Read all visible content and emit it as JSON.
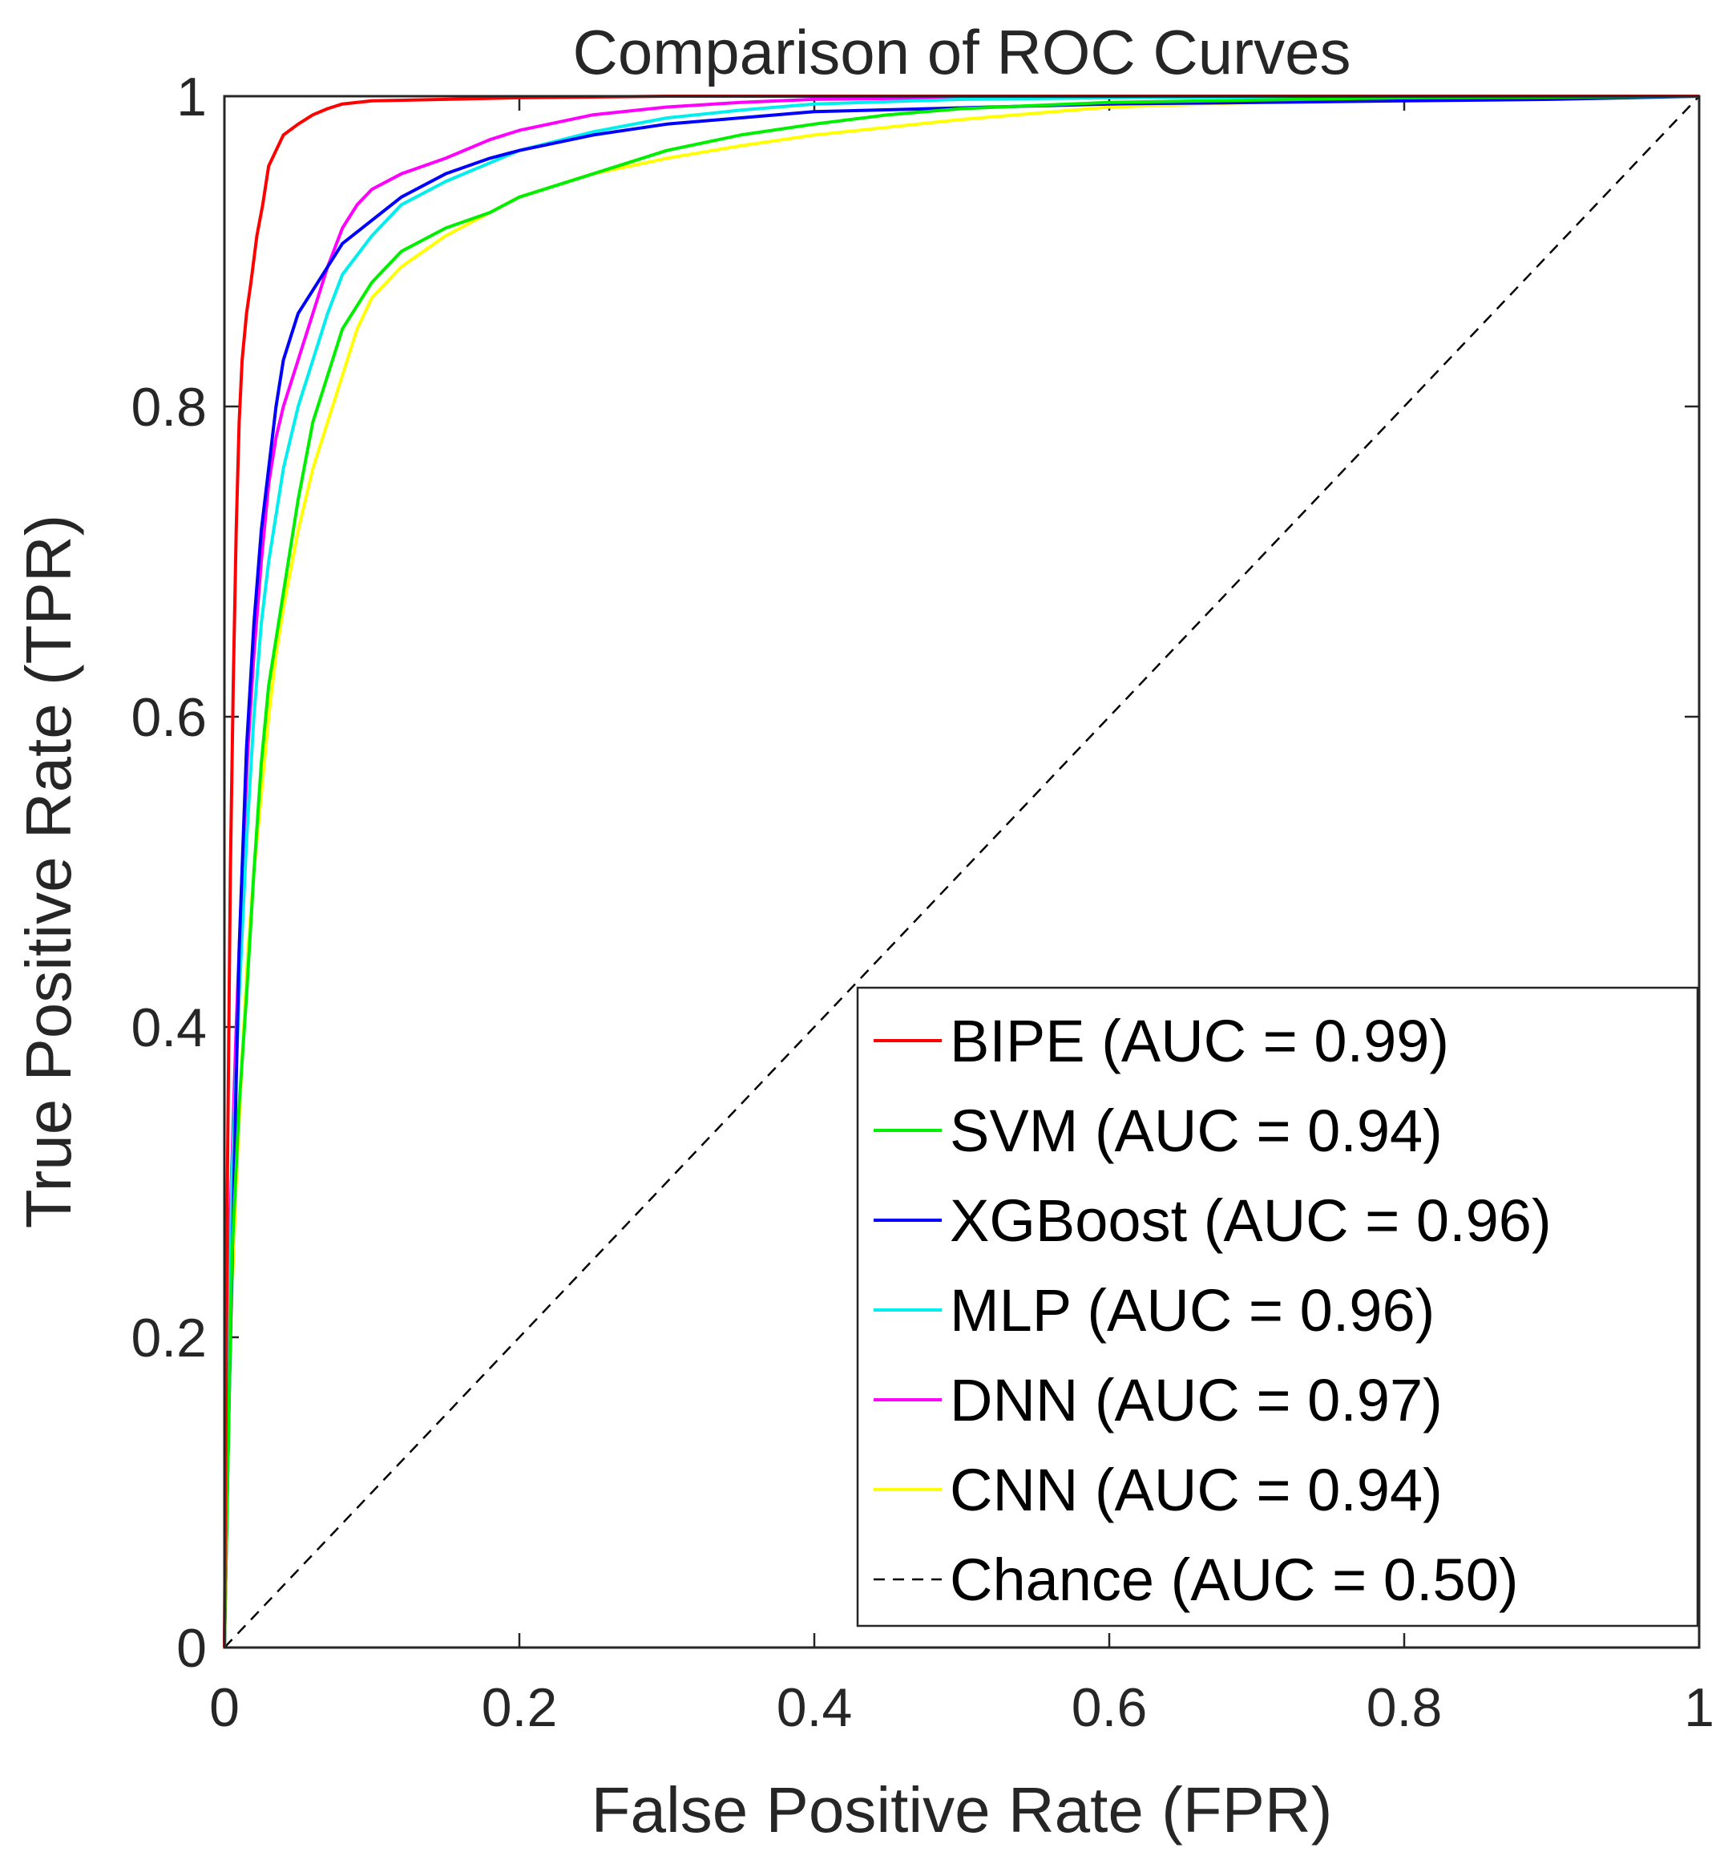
{
  "chart_data": {
    "type": "line",
    "title": "Comparison of ROC Curves",
    "xlabel": "False Positive Rate (FPR)",
    "ylabel": "True Positive Rate (TPR)",
    "xlim": [
      0,
      1
    ],
    "ylim": [
      0,
      1
    ],
    "xticks": [
      0,
      0.2,
      0.4,
      0.6,
      0.8,
      1
    ],
    "yticks": [
      0,
      0.2,
      0.4,
      0.6,
      0.8,
      1
    ],
    "xtick_labels": [
      "0",
      "0.2",
      "0.4",
      "0.6",
      "0.8",
      "1"
    ],
    "ytick_labels": [
      "0",
      "0.2",
      "0.4",
      "0.6",
      "0.8",
      "1"
    ],
    "grid": false,
    "legend_position": "bottom-right",
    "series": [
      {
        "name": "BIPE (AUC = 0.99)",
        "color": "#ff0000",
        "dash": "solid",
        "x": [
          0,
          0.002,
          0.004,
          0.006,
          0.008,
          0.01,
          0.012,
          0.015,
          0.018,
          0.022,
          0.026,
          0.03,
          0.035,
          0.04,
          0.05,
          0.06,
          0.07,
          0.08,
          0.1,
          0.15,
          0.2,
          0.3,
          0.4,
          0.6,
          0.8,
          1.0
        ],
        "y": [
          0,
          0.3,
          0.5,
          0.62,
          0.72,
          0.79,
          0.83,
          0.86,
          0.88,
          0.91,
          0.93,
          0.955,
          0.965,
          0.975,
          0.982,
          0.988,
          0.992,
          0.995,
          0.997,
          0.998,
          0.999,
          1.0,
          1.0,
          1.0,
          1.0,
          1.0
        ]
      },
      {
        "name": "SVM (AUC = 0.94)",
        "color": "#00ee00",
        "dash": "solid",
        "x": [
          0,
          0.005,
          0.01,
          0.015,
          0.02,
          0.025,
          0.03,
          0.04,
          0.05,
          0.06,
          0.07,
          0.08,
          0.1,
          0.12,
          0.15,
          0.18,
          0.2,
          0.25,
          0.3,
          0.35,
          0.4,
          0.45,
          0.5,
          0.6,
          0.8,
          1.0
        ],
        "y": [
          0,
          0.25,
          0.35,
          0.42,
          0.5,
          0.57,
          0.62,
          0.68,
          0.74,
          0.79,
          0.82,
          0.85,
          0.88,
          0.9,
          0.915,
          0.925,
          0.935,
          0.95,
          0.965,
          0.975,
          0.982,
          0.988,
          0.992,
          0.996,
          0.999,
          1.0
        ]
      },
      {
        "name": "XGBoost (AUC = 0.96)",
        "color": "#0000ff",
        "dash": "solid",
        "x": [
          0,
          0.003,
          0.006,
          0.01,
          0.015,
          0.02,
          0.025,
          0.03,
          0.035,
          0.04,
          0.045,
          0.05,
          0.06,
          0.07,
          0.08,
          0.1,
          0.12,
          0.15,
          0.18,
          0.2,
          0.25,
          0.3,
          0.4,
          0.6,
          0.8,
          0.9,
          1.0
        ],
        "y": [
          0,
          0.15,
          0.28,
          0.45,
          0.58,
          0.66,
          0.72,
          0.76,
          0.8,
          0.83,
          0.845,
          0.86,
          0.875,
          0.89,
          0.905,
          0.92,
          0.935,
          0.95,
          0.96,
          0.965,
          0.975,
          0.982,
          0.99,
          0.995,
          0.997,
          0.998,
          1.0
        ]
      },
      {
        "name": "MLP (AUC = 0.96)",
        "color": "#00eeee",
        "dash": "solid",
        "x": [
          0,
          0.005,
          0.01,
          0.015,
          0.02,
          0.025,
          0.03,
          0.035,
          0.04,
          0.05,
          0.06,
          0.07,
          0.08,
          0.1,
          0.12,
          0.15,
          0.18,
          0.2,
          0.25,
          0.3,
          0.35,
          0.4,
          0.5,
          0.6,
          0.8,
          1.0
        ],
        "y": [
          0,
          0.3,
          0.42,
          0.52,
          0.6,
          0.66,
          0.7,
          0.73,
          0.76,
          0.8,
          0.83,
          0.86,
          0.885,
          0.91,
          0.93,
          0.945,
          0.957,
          0.965,
          0.977,
          0.986,
          0.991,
          0.995,
          0.998,
          0.999,
          1.0,
          1.0
        ]
      },
      {
        "name": "DNN (AUC = 0.97)",
        "color": "#ff00ff",
        "dash": "solid",
        "x": [
          0,
          0.004,
          0.008,
          0.012,
          0.016,
          0.02,
          0.025,
          0.03,
          0.035,
          0.04,
          0.05,
          0.06,
          0.07,
          0.08,
          0.09,
          0.1,
          0.12,
          0.15,
          0.18,
          0.2,
          0.25,
          0.3,
          0.35,
          0.4,
          0.6,
          0.8,
          1.0
        ],
        "y": [
          0,
          0.28,
          0.4,
          0.5,
          0.58,
          0.64,
          0.7,
          0.75,
          0.78,
          0.8,
          0.83,
          0.86,
          0.89,
          0.915,
          0.93,
          0.94,
          0.95,
          0.96,
          0.972,
          0.978,
          0.988,
          0.993,
          0.996,
          0.998,
          1.0,
          1.0,
          1.0
        ]
      },
      {
        "name": "CNN (AUC = 0.94)",
        "color": "#ffff00",
        "dash": "solid",
        "x": [
          0,
          0.004,
          0.008,
          0.012,
          0.016,
          0.02,
          0.025,
          0.03,
          0.035,
          0.04,
          0.05,
          0.06,
          0.07,
          0.08,
          0.09,
          0.1,
          0.12,
          0.15,
          0.18,
          0.2,
          0.25,
          0.3,
          0.35,
          0.4,
          0.5,
          0.6,
          0.8,
          1.0
        ],
        "y": [
          0,
          0.2,
          0.3,
          0.38,
          0.45,
          0.5,
          0.55,
          0.6,
          0.64,
          0.67,
          0.72,
          0.76,
          0.79,
          0.82,
          0.85,
          0.87,
          0.89,
          0.91,
          0.925,
          0.935,
          0.95,
          0.96,
          0.968,
          0.975,
          0.985,
          0.993,
          0.999,
          1.0
        ]
      },
      {
        "name": "Chance (AUC = 0.50)",
        "color": "#000000",
        "dash": "dashed",
        "x": [
          0,
          1
        ],
        "y": [
          0,
          1
        ]
      }
    ]
  }
}
